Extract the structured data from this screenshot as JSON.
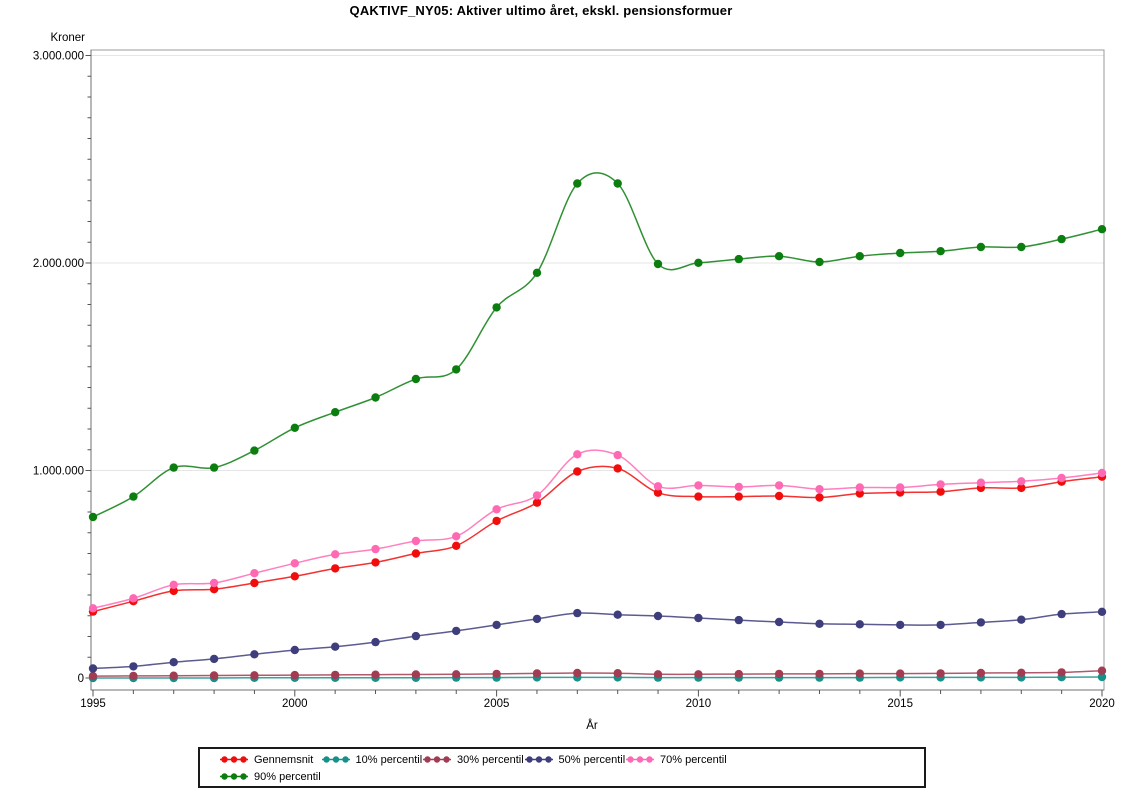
{
  "page": {
    "background": "#ffffff"
  },
  "chart_data": {
    "type": "line",
    "title": "QAKTIVF_NY05: Aktiver ultimo året, ekskl. pensionsformuer",
    "ylabel": "Kroner",
    "xlabel": "År",
    "ylim": [
      0,
      3000000
    ],
    "xlim": [
      1995,
      2020
    ],
    "grid": "horizontal-major",
    "legend_position": "bottom",
    "marker": "filled-circle",
    "ytick_values": [
      0,
      1000000,
      2000000,
      3000000
    ],
    "ytick_labels": [
      "0",
      "1.000.000",
      "2.000.000",
      "3.000.000"
    ],
    "yminor_interval": 100000,
    "xtick_labels": [
      1995,
      2000,
      2005,
      2010,
      2015,
      2020
    ],
    "xminor_interval": 1,
    "x": [
      1995,
      1996,
      1997,
      1998,
      1999,
      2000,
      2001,
      2002,
      2003,
      2004,
      2005,
      2006,
      2007,
      2008,
      2009,
      2010,
      2011,
      2012,
      2013,
      2014,
      2015,
      2016,
      2017,
      2018,
      2019,
      2020
    ],
    "series": [
      {
        "name": "Gennemsnit",
        "color": "#f20d0d",
        "values": [
          320000,
          370000,
          420000,
          428000,
          458000,
          490000,
          528000,
          557000,
          600000,
          637000,
          757000,
          845000,
          995000,
          1010000,
          893000,
          874000,
          874000,
          877000,
          870000,
          889000,
          894000,
          898000,
          916000,
          916000,
          946000,
          970000
        ]
      },
      {
        "name": "10% percentil",
        "color": "#17908a",
        "values": [
          0,
          0,
          0,
          0,
          1000,
          1000,
          1000,
          1000,
          1000,
          2000,
          2000,
          3000,
          3000,
          3000,
          2000,
          2000,
          2000,
          2000,
          2000,
          2000,
          3000,
          3000,
          3000,
          3000,
          4000,
          5000
        ]
      },
      {
        "name": "30% percentil",
        "color": "#a23c52",
        "values": [
          9000,
          10000,
          11000,
          12000,
          13000,
          14000,
          15000,
          16000,
          17000,
          18000,
          20000,
          22000,
          24000,
          23000,
          18000,
          18000,
          19000,
          20000,
          20000,
          21000,
          21000,
          22000,
          24000,
          25000,
          27000,
          35000
        ]
      },
      {
        "name": "50% percentil",
        "color": "#3e3e7c",
        "values": [
          46000,
          56000,
          76000,
          92000,
          114000,
          135000,
          151000,
          173000,
          202000,
          227000,
          256000,
          285000,
          313000,
          305000,
          299000,
          289000,
          279000,
          270000,
          261000,
          259000,
          256000,
          256000,
          268000,
          281000,
          308000,
          319000
        ]
      },
      {
        "name": "70% percentil",
        "color": "#ff69b4",
        "values": [
          336000,
          384000,
          449000,
          458000,
          505000,
          553000,
          596000,
          621000,
          660000,
          683000,
          813000,
          880000,
          1078000,
          1074000,
          924000,
          928000,
          921000,
          928000,
          910000,
          918000,
          918000,
          933000,
          941000,
          948000,
          964000,
          988000
        ]
      },
      {
        "name": "90% percentil",
        "color": "#0c7e10",
        "values": [
          776000,
          874000,
          1014000,
          1014000,
          1096000,
          1206000,
          1281000,
          1352000,
          1441000,
          1487000,
          1786000,
          1953000,
          2383000,
          2383000,
          1995000,
          2001000,
          2019000,
          2033000,
          2005000,
          2033000,
          2048000,
          2057000,
          2077000,
          2077000,
          2115000,
          2163000
        ]
      }
    ],
    "style_colors": {
      "gridline": "#e5e5e5",
      "frame": "#9b9b9b",
      "axis": "#707070",
      "tick": "#555555",
      "legend_border": "#1a1a1a"
    }
  }
}
